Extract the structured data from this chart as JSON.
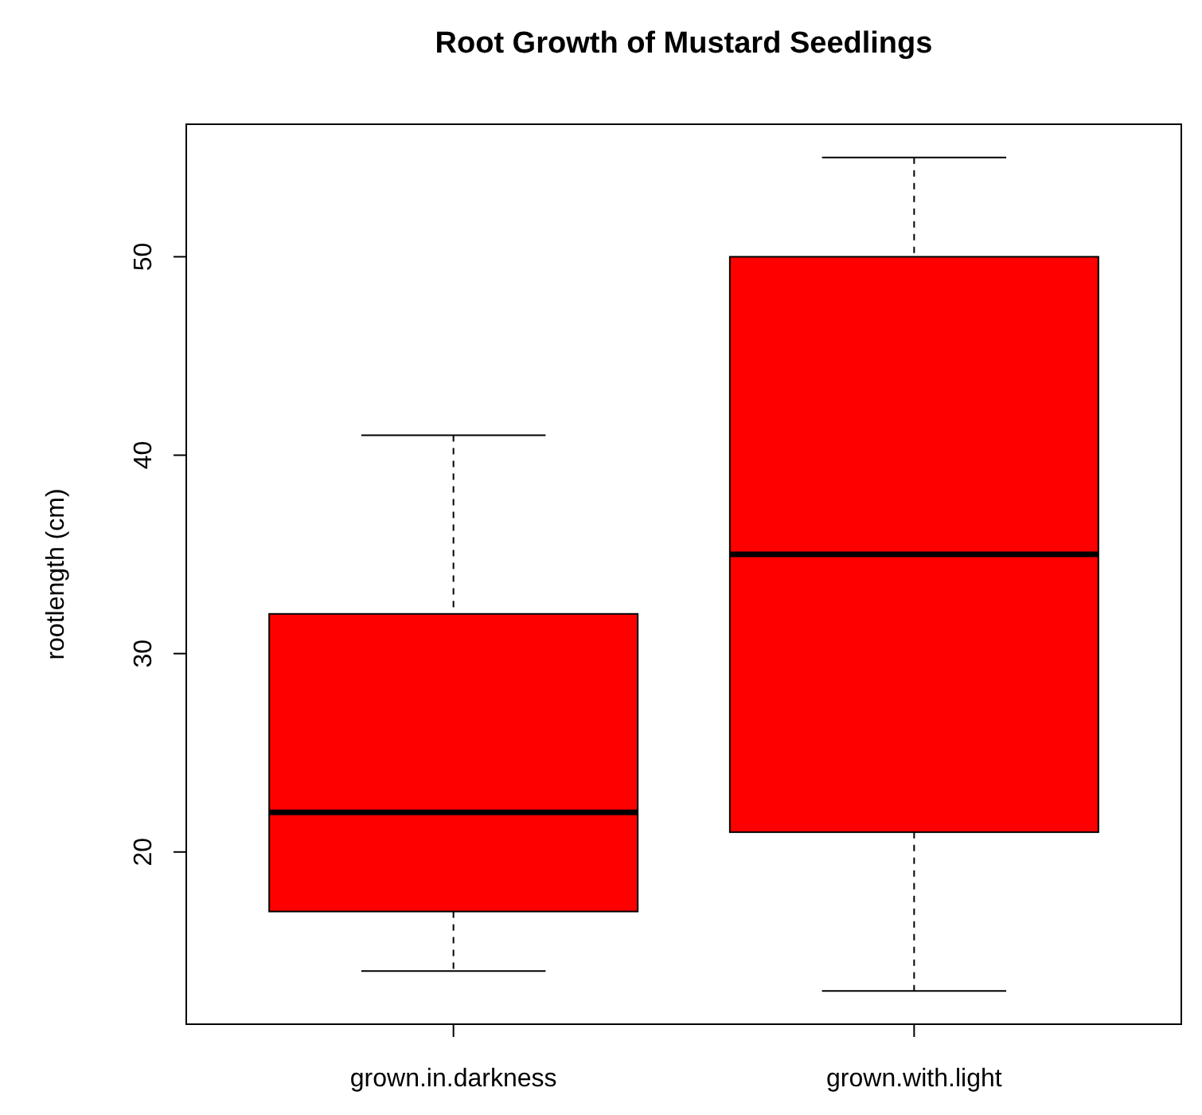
{
  "chart_data": {
    "type": "box",
    "title": "Root Growth of Mustard Seedlings",
    "ylabel": "rootlength (cm)",
    "categories": [
      "grown.in.darkness",
      "grown.with.light"
    ],
    "boxes": [
      {
        "low": 14,
        "q1": 17,
        "median": 22,
        "q3": 32,
        "high": 41
      },
      {
        "low": 13,
        "q1": 21,
        "median": 35,
        "q3": 50,
        "high": 55
      }
    ],
    "color": "#ff0000",
    "ylim": [
      11.32,
      56.68
    ],
    "yticks": [
      20,
      30,
      40,
      50
    ],
    "grid": false
  }
}
